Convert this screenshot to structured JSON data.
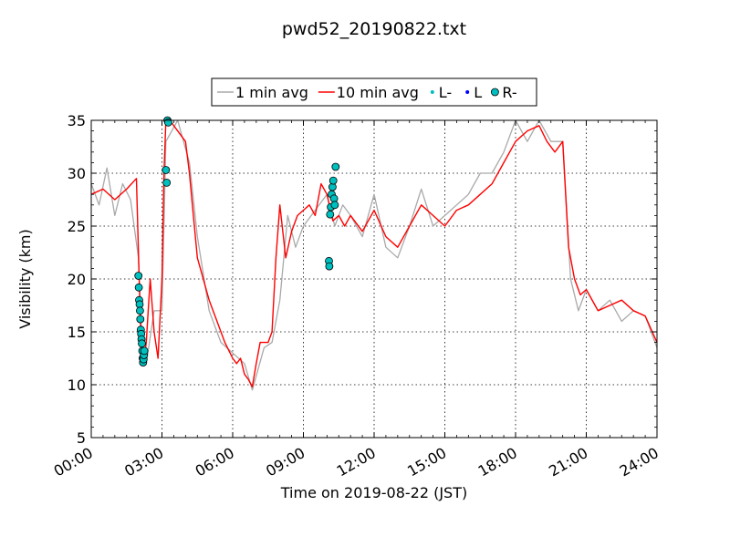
{
  "chart_data": {
    "type": "line",
    "title": "pwd52_20190822.txt",
    "xlabel": "Time on 2019-08-22 (JST)",
    "ylabel": "Visibility (km)",
    "xlim": [
      "00:00",
      "24:00"
    ],
    "ylim": [
      5,
      35
    ],
    "x_ticks": [
      "00:00",
      "03:00",
      "06:00",
      "09:00",
      "12:00",
      "15:00",
      "18:00",
      "21:00",
      "24:00"
    ],
    "y_ticks": [
      5,
      10,
      15,
      20,
      25,
      30,
      35
    ],
    "grid": true,
    "legend_position": "top-center",
    "legend": [
      {
        "label": "1 min avg",
        "marker": "line",
        "color": "#a9a9a9"
      },
      {
        "label": "10 min avg",
        "marker": "line",
        "color": "#ff0000"
      },
      {
        "label": "L-",
        "marker": "small-dot",
        "color": "#00bfbf"
      },
      {
        "label": "L",
        "marker": "small-dot",
        "color": "#0000ff"
      },
      {
        "label": "R-",
        "marker": "circle",
        "color": "#00bfbf"
      }
    ],
    "series": [
      {
        "name": "10 min avg",
        "color": "#ff0000",
        "x": [
          "00:00",
          "00:30",
          "01:00",
          "01:30",
          "01:55",
          "02:05",
          "02:10",
          "02:15",
          "02:20",
          "02:25",
          "02:30",
          "02:40",
          "02:50",
          "03:00",
          "03:05",
          "03:10",
          "03:20",
          "03:40",
          "04:00",
          "04:10",
          "04:20",
          "04:30",
          "05:00",
          "05:20",
          "05:40",
          "06:00",
          "06:10",
          "06:20",
          "06:30",
          "06:40",
          "06:50",
          "07:00",
          "07:10",
          "07:30",
          "07:40",
          "07:50",
          "08:00",
          "08:15",
          "08:30",
          "08:45",
          "09:00",
          "09:15",
          "09:30",
          "09:45",
          "10:00",
          "10:15",
          "10:30",
          "10:45",
          "11:00",
          "11:30",
          "12:00",
          "12:30",
          "13:00",
          "13:30",
          "14:00",
          "14:30",
          "15:00",
          "15:30",
          "16:00",
          "16:30",
          "17:00",
          "17:30",
          "18:00",
          "18:30",
          "19:00",
          "19:20",
          "19:40",
          "20:00",
          "20:15",
          "20:30",
          "20:45",
          "21:00",
          "21:30",
          "22:00",
          "22:30",
          "23:00",
          "23:30",
          "24:00"
        ],
        "y": [
          28.0,
          28.5,
          27.5,
          28.5,
          29.5,
          16.0,
          13.0,
          12.5,
          14.0,
          17.0,
          20.0,
          15.0,
          12.5,
          20.0,
          30.0,
          35.0,
          35.0,
          34.0,
          33.0,
          30.0,
          26.0,
          22.0,
          18.0,
          16.0,
          14.0,
          12.5,
          12.0,
          12.5,
          11.0,
          10.5,
          9.8,
          12.0,
          14.0,
          14.0,
          15.0,
          22.0,
          27.0,
          22.0,
          24.5,
          26.0,
          26.5,
          27.0,
          26.0,
          29.0,
          28.0,
          25.5,
          26.0,
          25.0,
          26.0,
          24.5,
          26.5,
          24.0,
          23.0,
          25.0,
          27.0,
          26.0,
          25.0,
          26.5,
          27.0,
          28.0,
          29.0,
          31.0,
          33.0,
          34.0,
          34.5,
          33.0,
          32.0,
          33.0,
          23.0,
          20.0,
          18.5,
          19.0,
          17.0,
          17.5,
          18.0,
          17.0,
          16.5,
          14.0
        ]
      },
      {
        "name": "R-",
        "color": "#00bfbf",
        "x": [
          "02:00",
          "02:01",
          "02:02",
          "02:03",
          "02:04",
          "02:05",
          "02:06",
          "02:07",
          "02:08",
          "02:09",
          "02:10",
          "02:11",
          "02:12",
          "02:13",
          "02:14",
          "02:15",
          "03:10",
          "03:12",
          "03:14",
          "03:16",
          "10:05",
          "10:06",
          "10:08",
          "10:10",
          "10:12",
          "10:14",
          "10:16",
          "10:18",
          "10:20",
          "10:22"
        ],
        "y": [
          20.3,
          19.2,
          18.0,
          17.6,
          17.0,
          16.2,
          15.2,
          14.8,
          14.3,
          13.9,
          13.2,
          12.5,
          12.1,
          12.4,
          12.8,
          13.2,
          30.3,
          29.1,
          35.0,
          34.8,
          21.7,
          21.2,
          26.1,
          26.8,
          28.0,
          28.7,
          29.3,
          27.6,
          27.0,
          30.6
        ]
      },
      {
        "name": "1 min avg",
        "color": "#a9a9a9",
        "x": [
          "00:00",
          "00:20",
          "00:40",
          "01:00",
          "01:20",
          "01:40",
          "02:00",
          "02:10",
          "02:20",
          "02:40",
          "03:00",
          "03:10",
          "03:40",
          "04:10",
          "04:30",
          "05:00",
          "05:30",
          "06:00",
          "06:30",
          "06:50",
          "07:20",
          "07:40",
          "08:00",
          "08:20",
          "08:40",
          "09:00",
          "09:30",
          "10:00",
          "10:20",
          "10:40",
          "11:00",
          "11:30",
          "12:00",
          "12:30",
          "13:00",
          "13:30",
          "14:00",
          "14:30",
          "15:00",
          "15:30",
          "16:00",
          "16:30",
          "17:00",
          "17:30",
          "18:00",
          "18:30",
          "19:00",
          "19:30",
          "20:00",
          "20:20",
          "20:40",
          "21:00",
          "21:30",
          "22:00",
          "22:30",
          "23:00",
          "23:30",
          "24:00"
        ],
        "y": [
          29.0,
          27.0,
          30.5,
          26.0,
          29.0,
          27.5,
          22.0,
          13.0,
          12.0,
          17.0,
          17.0,
          33.0,
          35.0,
          31.0,
          24.0,
          17.0,
          14.0,
          13.0,
          12.0,
          9.5,
          13.5,
          14.0,
          18.0,
          26.0,
          23.0,
          25.0,
          26.5,
          28.0,
          25.0,
          27.0,
          26.0,
          24.0,
          28.0,
          23.0,
          22.0,
          25.0,
          28.5,
          25.0,
          26.0,
          27.0,
          28.0,
          30.0,
          30.0,
          32.0,
          35.0,
          33.0,
          35.0,
          33.0,
          33.0,
          20.0,
          17.0,
          19.0,
          17.0,
          18.0,
          16.0,
          17.0,
          16.5,
          13.5
        ]
      }
    ]
  }
}
